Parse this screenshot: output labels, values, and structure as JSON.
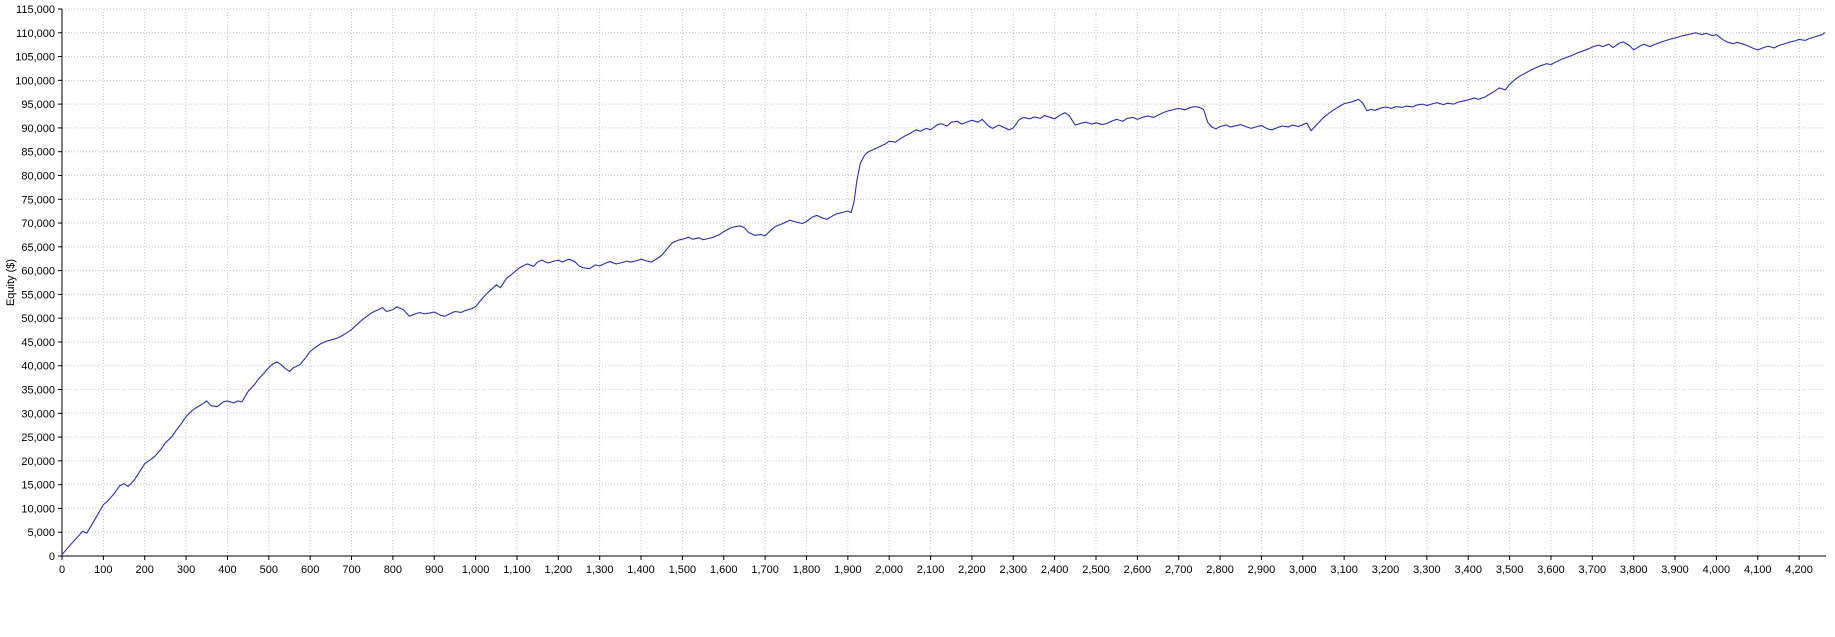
{
  "chart_data": {
    "type": "line",
    "title": "",
    "xlabel": "",
    "ylabel": "Equity ($)",
    "series_name": "Equity curve",
    "line_color": "#2730b4",
    "grid_color": "#c4c4c4",
    "axis_color": "#000000",
    "xlim": [
      0,
      4265
    ],
    "ylim": [
      0,
      115000
    ],
    "x_ticks": [
      0,
      100,
      200,
      300,
      400,
      500,
      600,
      700,
      800,
      900,
      1000,
      1100,
      1200,
      1300,
      1400,
      1500,
      1600,
      1700,
      1800,
      1900,
      2000,
      2100,
      2200,
      2300,
      2400,
      2500,
      2600,
      2700,
      2800,
      2900,
      3000,
      3100,
      3200,
      3300,
      3400,
      3500,
      3600,
      3700,
      3800,
      3900,
      4000,
      4100,
      4200
    ],
    "y_ticks": [
      0,
      5000,
      10000,
      15000,
      20000,
      25000,
      30000,
      35000,
      40000,
      45000,
      50000,
      55000,
      60000,
      65000,
      70000,
      75000,
      80000,
      85000,
      90000,
      95000,
      100000,
      105000,
      110000,
      115000
    ],
    "grid": true,
    "legend": false,
    "points": [
      [
        0,
        300
      ],
      [
        25,
        2800
      ],
      [
        50,
        5200
      ],
      [
        60,
        4800
      ],
      [
        75,
        7000
      ],
      [
        100,
        10800
      ],
      [
        110,
        11500
      ],
      [
        125,
        13000
      ],
      [
        140,
        14800
      ],
      [
        150,
        15200
      ],
      [
        160,
        14600
      ],
      [
        175,
        16000
      ],
      [
        200,
        19400
      ],
      [
        215,
        20300
      ],
      [
        225,
        21000
      ],
      [
        240,
        22500
      ],
      [
        250,
        23800
      ],
      [
        265,
        25000
      ],
      [
        275,
        26300
      ],
      [
        290,
        28000
      ],
      [
        300,
        29300
      ],
      [
        315,
        30600
      ],
      [
        325,
        31200
      ],
      [
        340,
        32000
      ],
      [
        350,
        32600
      ],
      [
        360,
        31600
      ],
      [
        375,
        31400
      ],
      [
        390,
        32400
      ],
      [
        400,
        32600
      ],
      [
        415,
        32200
      ],
      [
        425,
        32600
      ],
      [
        435,
        32400
      ],
      [
        450,
        34600
      ],
      [
        465,
        36000
      ],
      [
        475,
        37200
      ],
      [
        490,
        38600
      ],
      [
        500,
        39600
      ],
      [
        510,
        40400
      ],
      [
        520,
        40800
      ],
      [
        530,
        40200
      ],
      [
        540,
        39400
      ],
      [
        550,
        38800
      ],
      [
        560,
        39600
      ],
      [
        575,
        40200
      ],
      [
        590,
        41800
      ],
      [
        600,
        43000
      ],
      [
        615,
        44000
      ],
      [
        625,
        44600
      ],
      [
        640,
        45200
      ],
      [
        650,
        45400
      ],
      [
        665,
        45800
      ],
      [
        675,
        46200
      ],
      [
        690,
        47000
      ],
      [
        700,
        47600
      ],
      [
        715,
        48800
      ],
      [
        725,
        49600
      ],
      [
        740,
        50600
      ],
      [
        750,
        51200
      ],
      [
        765,
        51800
      ],
      [
        775,
        52200
      ],
      [
        785,
        51400
      ],
      [
        800,
        51800
      ],
      [
        810,
        52400
      ],
      [
        825,
        51800
      ],
      [
        840,
        50400
      ],
      [
        850,
        50800
      ],
      [
        865,
        51200
      ],
      [
        875,
        50900
      ],
      [
        890,
        51100
      ],
      [
        900,
        51300
      ],
      [
        915,
        50600
      ],
      [
        925,
        50400
      ],
      [
        940,
        51000
      ],
      [
        950,
        51400
      ],
      [
        965,
        51200
      ],
      [
        975,
        51600
      ],
      [
        990,
        52000
      ],
      [
        1000,
        52400
      ],
      [
        1010,
        53500
      ],
      [
        1025,
        55000
      ],
      [
        1040,
        56200
      ],
      [
        1050,
        57000
      ],
      [
        1060,
        56400
      ],
      [
        1075,
        58400
      ],
      [
        1090,
        59400
      ],
      [
        1100,
        60200
      ],
      [
        1110,
        60800
      ],
      [
        1125,
        61400
      ],
      [
        1140,
        60900
      ],
      [
        1150,
        61800
      ],
      [
        1160,
        62200
      ],
      [
        1175,
        61600
      ],
      [
        1190,
        62000
      ],
      [
        1200,
        62200
      ],
      [
        1210,
        61800
      ],
      [
        1225,
        62400
      ],
      [
        1240,
        61900
      ],
      [
        1250,
        61000
      ],
      [
        1260,
        60600
      ],
      [
        1275,
        60400
      ],
      [
        1290,
        61200
      ],
      [
        1300,
        61000
      ],
      [
        1315,
        61600
      ],
      [
        1325,
        61900
      ],
      [
        1340,
        61400
      ],
      [
        1350,
        61600
      ],
      [
        1365,
        62000
      ],
      [
        1375,
        61800
      ],
      [
        1390,
        62100
      ],
      [
        1400,
        62400
      ],
      [
        1415,
        62000
      ],
      [
        1425,
        61800
      ],
      [
        1440,
        62600
      ],
      [
        1450,
        63200
      ],
      [
        1465,
        64800
      ],
      [
        1475,
        65800
      ],
      [
        1490,
        66400
      ],
      [
        1500,
        66600
      ],
      [
        1515,
        67000
      ],
      [
        1525,
        66600
      ],
      [
        1540,
        66900
      ],
      [
        1550,
        66500
      ],
      [
        1565,
        66800
      ],
      [
        1575,
        67000
      ],
      [
        1590,
        67600
      ],
      [
        1600,
        68200
      ],
      [
        1615,
        68900
      ],
      [
        1625,
        69200
      ],
      [
        1640,
        69400
      ],
      [
        1650,
        69000
      ],
      [
        1660,
        68000
      ],
      [
        1675,
        67400
      ],
      [
        1690,
        67600
      ],
      [
        1700,
        67300
      ],
      [
        1715,
        68600
      ],
      [
        1725,
        69300
      ],
      [
        1740,
        69800
      ],
      [
        1750,
        70200
      ],
      [
        1760,
        70600
      ],
      [
        1775,
        70200
      ],
      [
        1790,
        69900
      ],
      [
        1800,
        70300
      ],
      [
        1815,
        71300
      ],
      [
        1825,
        71600
      ],
      [
        1840,
        71000
      ],
      [
        1850,
        70800
      ],
      [
        1865,
        71600
      ],
      [
        1875,
        72000
      ],
      [
        1890,
        72300
      ],
      [
        1900,
        72500
      ],
      [
        1908,
        72200
      ],
      [
        1915,
        74500
      ],
      [
        1922,
        79000
      ],
      [
        1930,
        82500
      ],
      [
        1940,
        84200
      ],
      [
        1950,
        85000
      ],
      [
        1965,
        85600
      ],
      [
        1975,
        86000
      ],
      [
        1990,
        86600
      ],
      [
        2000,
        87200
      ],
      [
        2015,
        87000
      ],
      [
        2025,
        87600
      ],
      [
        2040,
        88400
      ],
      [
        2050,
        88800
      ],
      [
        2065,
        89600
      ],
      [
        2075,
        89300
      ],
      [
        2090,
        89900
      ],
      [
        2100,
        89600
      ],
      [
        2115,
        90600
      ],
      [
        2125,
        90900
      ],
      [
        2140,
        90400
      ],
      [
        2150,
        91200
      ],
      [
        2165,
        91400
      ],
      [
        2175,
        90800
      ],
      [
        2190,
        91300
      ],
      [
        2200,
        91600
      ],
      [
        2215,
        91200
      ],
      [
        2225,
        91800
      ],
      [
        2240,
        90400
      ],
      [
        2250,
        89900
      ],
      [
        2265,
        90600
      ],
      [
        2275,
        90200
      ],
      [
        2290,
        89600
      ],
      [
        2300,
        90000
      ],
      [
        2315,
        91800
      ],
      [
        2325,
        92200
      ],
      [
        2340,
        91900
      ],
      [
        2350,
        92300
      ],
      [
        2365,
        92000
      ],
      [
        2375,
        92600
      ],
      [
        2390,
        92200
      ],
      [
        2400,
        91900
      ],
      [
        2415,
        92800
      ],
      [
        2425,
        93200
      ],
      [
        2435,
        92600
      ],
      [
        2450,
        90600
      ],
      [
        2465,
        91000
      ],
      [
        2475,
        91200
      ],
      [
        2490,
        90800
      ],
      [
        2500,
        91100
      ],
      [
        2515,
        90700
      ],
      [
        2525,
        90900
      ],
      [
        2540,
        91500
      ],
      [
        2550,
        91800
      ],
      [
        2565,
        91400
      ],
      [
        2575,
        92000
      ],
      [
        2590,
        92200
      ],
      [
        2600,
        91800
      ],
      [
        2615,
        92300
      ],
      [
        2625,
        92500
      ],
      [
        2640,
        92200
      ],
      [
        2650,
        92700
      ],
      [
        2665,
        93300
      ],
      [
        2675,
        93600
      ],
      [
        2690,
        93900
      ],
      [
        2700,
        94100
      ],
      [
        2715,
        93800
      ],
      [
        2725,
        94200
      ],
      [
        2740,
        94500
      ],
      [
        2750,
        94300
      ],
      [
        2760,
        93900
      ],
      [
        2770,
        91200
      ],
      [
        2780,
        90200
      ],
      [
        2790,
        89800
      ],
      [
        2800,
        90300
      ],
      [
        2815,
        90600
      ],
      [
        2825,
        90200
      ],
      [
        2840,
        90500
      ],
      [
        2850,
        90700
      ],
      [
        2865,
        90200
      ],
      [
        2875,
        89900
      ],
      [
        2890,
        90300
      ],
      [
        2900,
        90500
      ],
      [
        2915,
        89800
      ],
      [
        2925,
        89600
      ],
      [
        2940,
        90100
      ],
      [
        2950,
        90400
      ],
      [
        2965,
        90200
      ],
      [
        2975,
        90600
      ],
      [
        2990,
        90300
      ],
      [
        3000,
        90700
      ],
      [
        3010,
        91000
      ],
      [
        3020,
        89400
      ],
      [
        3035,
        90800
      ],
      [
        3050,
        92200
      ],
      [
        3065,
        93200
      ],
      [
        3075,
        93800
      ],
      [
        3090,
        94600
      ],
      [
        3100,
        95100
      ],
      [
        3115,
        95400
      ],
      [
        3125,
        95700
      ],
      [
        3135,
        96000
      ],
      [
        3145,
        95200
      ],
      [
        3155,
        93600
      ],
      [
        3165,
        93900
      ],
      [
        3175,
        93700
      ],
      [
        3190,
        94200
      ],
      [
        3200,
        94400
      ],
      [
        3215,
        94100
      ],
      [
        3225,
        94500
      ],
      [
        3240,
        94300
      ],
      [
        3250,
        94600
      ],
      [
        3265,
        94400
      ],
      [
        3275,
        94800
      ],
      [
        3290,
        95000
      ],
      [
        3300,
        94700
      ],
      [
        3315,
        95100
      ],
      [
        3325,
        95300
      ],
      [
        3340,
        94900
      ],
      [
        3350,
        95200
      ],
      [
        3365,
        95000
      ],
      [
        3375,
        95400
      ],
      [
        3390,
        95700
      ],
      [
        3400,
        95900
      ],
      [
        3415,
        96300
      ],
      [
        3425,
        96000
      ],
      [
        3440,
        96500
      ],
      [
        3450,
        97000
      ],
      [
        3465,
        97800
      ],
      [
        3475,
        98400
      ],
      [
        3490,
        98000
      ],
      [
        3500,
        99200
      ],
      [
        3515,
        100300
      ],
      [
        3525,
        100900
      ],
      [
        3540,
        101600
      ],
      [
        3550,
        102100
      ],
      [
        3565,
        102700
      ],
      [
        3575,
        103100
      ],
      [
        3590,
        103500
      ],
      [
        3600,
        103300
      ],
      [
        3615,
        104000
      ],
      [
        3625,
        104400
      ],
      [
        3640,
        104900
      ],
      [
        3650,
        105200
      ],
      [
        3665,
        105800
      ],
      [
        3675,
        106100
      ],
      [
        3690,
        106600
      ],
      [
        3700,
        107000
      ],
      [
        3715,
        107400
      ],
      [
        3725,
        107100
      ],
      [
        3740,
        107600
      ],
      [
        3750,
        106900
      ],
      [
        3765,
        107800
      ],
      [
        3775,
        108100
      ],
      [
        3790,
        107300
      ],
      [
        3800,
        106400
      ],
      [
        3815,
        107200
      ],
      [
        3825,
        107600
      ],
      [
        3840,
        107100
      ],
      [
        3850,
        107500
      ],
      [
        3865,
        108000
      ],
      [
        3875,
        108300
      ],
      [
        3890,
        108700
      ],
      [
        3900,
        108900
      ],
      [
        3915,
        109300
      ],
      [
        3925,
        109500
      ],
      [
        3940,
        109800
      ],
      [
        3950,
        110000
      ],
      [
        3965,
        109600
      ],
      [
        3975,
        109900
      ],
      [
        3990,
        109400
      ],
      [
        4000,
        109600
      ],
      [
        4015,
        108600
      ],
      [
        4025,
        108100
      ],
      [
        4040,
        107700
      ],
      [
        4050,
        108000
      ],
      [
        4065,
        107600
      ],
      [
        4075,
        107300
      ],
      [
        4090,
        106700
      ],
      [
        4100,
        106400
      ],
      [
        4115,
        106900
      ],
      [
        4125,
        107200
      ],
      [
        4140,
        106800
      ],
      [
        4150,
        107300
      ],
      [
        4165,
        107700
      ],
      [
        4175,
        108000
      ],
      [
        4190,
        108300
      ],
      [
        4200,
        108600
      ],
      [
        4215,
        108400
      ],
      [
        4225,
        108800
      ],
      [
        4240,
        109200
      ],
      [
        4255,
        109600
      ],
      [
        4262,
        110000
      ]
    ]
  }
}
